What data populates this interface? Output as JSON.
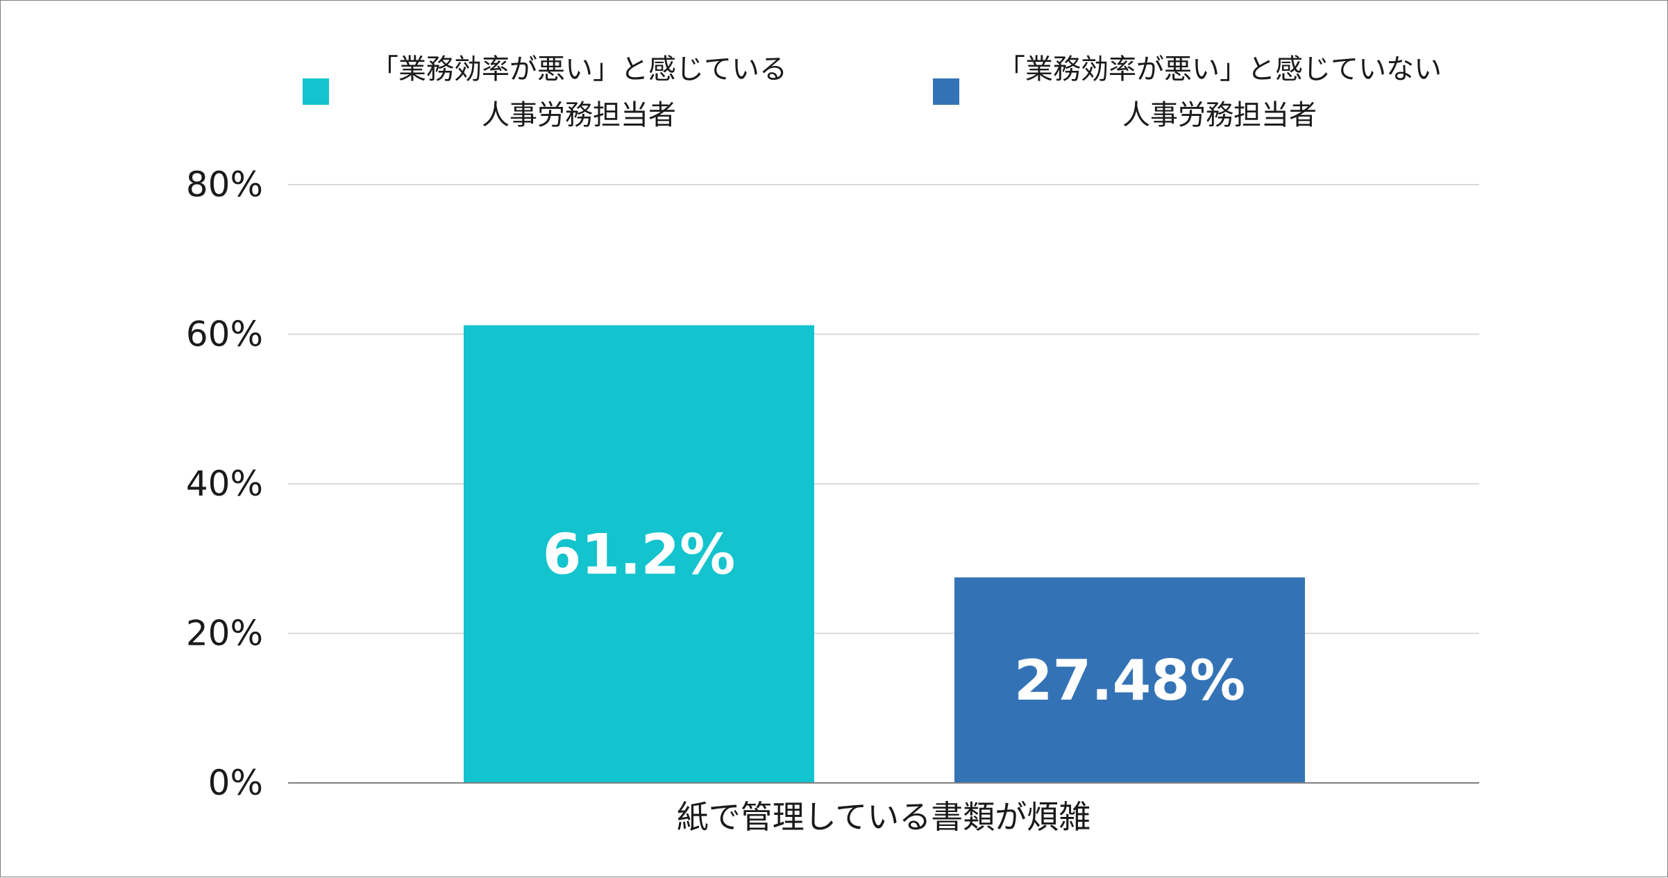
{
  "chart_data": {
    "type": "bar",
    "categories": [
      "紙で管理している書類が煩雑"
    ],
    "series": [
      {
        "name": "「業務効率が悪い」と感じている 人事労務担当者",
        "name_lines": [
          "「業務効率が悪い」と感じている",
          "人事労務担当者"
        ],
        "values": [
          61.2
        ],
        "label": "61.2%",
        "color": "#13c3cd"
      },
      {
        "name": "「業務効率が悪い」と感じていない 人事労務担当者",
        "name_lines": [
          "「業務効率が悪い」と感じていない",
          "人事労務担当者"
        ],
        "values": [
          27.48
        ],
        "label": "27.48%",
        "color": "#3373b5"
      }
    ],
    "ylim": [
      0,
      80
    ],
    "yticks": [
      0,
      20,
      40,
      60,
      80
    ],
    "ytick_labels": [
      "0%",
      "20%",
      "40%",
      "60%",
      "80%"
    ],
    "grid": true,
    "legend_position": "top"
  }
}
